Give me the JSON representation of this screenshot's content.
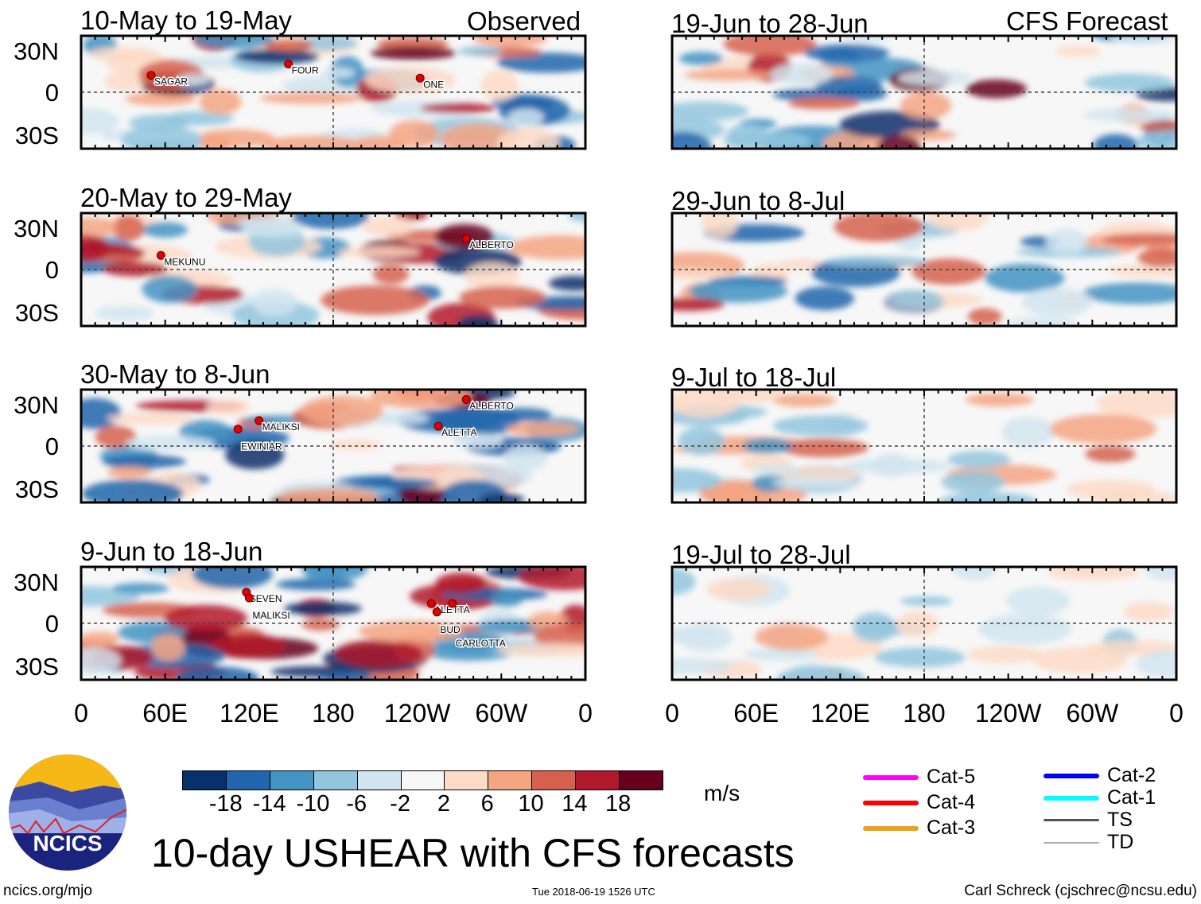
{
  "chart_data": {
    "type": "heatmap",
    "title": "10-day USHEAR with CFS forecasts",
    "units": "m/s",
    "column_headers": {
      "observed": "Observed",
      "forecast": "CFS Forecast"
    },
    "ytick_labels": [
      "30N",
      "0",
      "30S"
    ],
    "xtick_labels": [
      "0",
      "60E",
      "120E",
      "180",
      "120W",
      "60W",
      "0"
    ],
    "colorbar": {
      "colors": [
        "#08306b",
        "#2166ac",
        "#4393c3",
        "#92c5de",
        "#d1e5f0",
        "#f7f7f7",
        "#fddbc7",
        "#f4a582",
        "#d6604d",
        "#b2182b",
        "#67001f"
      ],
      "tick_labels": [
        "-18",
        "-14",
        "-10",
        "-6",
        "-2",
        "2",
        "6",
        "10",
        "14",
        "18"
      ]
    },
    "panels": [
      {
        "title": "10-May to 19-May",
        "kind": "observed",
        "storms": [
          {
            "name": "SAGAR",
            "lon": 50,
            "lat": 12
          },
          {
            "name": "FOUR",
            "lon": 148,
            "lat": 20
          },
          {
            "name": "ONE",
            "lon": -118,
            "lat": 10
          }
        ]
      },
      {
        "title": "20-May to 29-May",
        "kind": "observed",
        "storms": [
          {
            "name": "MEKUNU",
            "lon": 57,
            "lat": 10
          },
          {
            "name": "ALBERTO",
            "lon": -85,
            "lat": 22
          }
        ]
      },
      {
        "title": "30-May to 8-Jun",
        "kind": "observed",
        "storms": [
          {
            "name": "ALBERTO",
            "lon": -85,
            "lat": 33
          },
          {
            "name": "MALIKSI",
            "lon": 127,
            "lat": 18
          },
          {
            "name": "EWINIAR",
            "lon": 112,
            "lat": 12
          },
          {
            "name": "ALETTA",
            "lon": -105,
            "lat": 14
          }
        ]
      },
      {
        "title": "9-Jun to 18-Jun",
        "kind": "observed",
        "storms": [
          {
            "name": "SEVEN",
            "lon": 118,
            "lat": 22
          },
          {
            "name": "MALIKSI",
            "lon": 120,
            "lat": 18
          },
          {
            "name": "ALETTA",
            "lon": -110,
            "lat": 14
          },
          {
            "name": "BUD",
            "lon": -106,
            "lat": 8
          },
          {
            "name": "CARLOTTA",
            "lon": -95,
            "lat": 14
          }
        ]
      },
      {
        "title": "19-Jun to 28-Jun",
        "kind": "forecast",
        "storms": []
      },
      {
        "title": "29-Jun to 8-Jul",
        "kind": "forecast",
        "storms": []
      },
      {
        "title": "9-Jul to 18-Jul",
        "kind": "forecast",
        "storms": []
      },
      {
        "title": "19-Jul to 28-Jul",
        "kind": "forecast",
        "storms": []
      }
    ]
  },
  "legend": [
    {
      "label": "Cat-5",
      "color": "#ff00ff"
    },
    {
      "label": "Cat-4",
      "color": "#ff0000"
    },
    {
      "label": "Cat-3",
      "color": "#e8a317"
    },
    {
      "label": "Cat-2",
      "color": "#0000ff"
    },
    {
      "label": "Cat-1",
      "color": "#00ffff"
    },
    {
      "label": "TS",
      "color": "#555555"
    },
    {
      "label": "TD",
      "color": "#aaaaaa"
    }
  ],
  "logo_text": "NCICS",
  "footer": {
    "left": "ncics.org/mjo",
    "timestamp": "Tue 2018-06-19 1526 UTC",
    "right": "Carl Schreck (cjschrec@ncsu.edu)"
  }
}
